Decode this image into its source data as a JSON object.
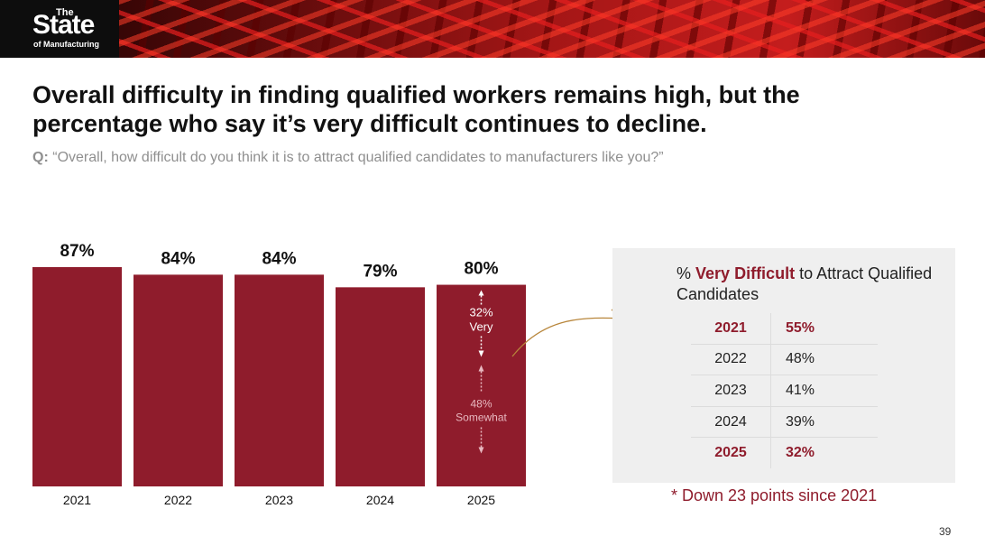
{
  "logo": {
    "the": "The",
    "main": "State",
    "sub": "of Manufacturing"
  },
  "title": "Overall difficulty in finding qualified workers remains high, but the percentage who say it’s very difficult continues to decline.",
  "question": {
    "prefix": "Q:",
    "text": "“Overall, how difficult do you think it is to attract qualified candidates to manufacturers like you?”"
  },
  "chart_data": {
    "type": "bar",
    "categories": [
      "2021",
      "2022",
      "2023",
      "2024",
      "2025"
    ],
    "values": [
      87,
      84,
      84,
      79,
      80
    ],
    "labels": [
      "87%",
      "84%",
      "84%",
      "79%",
      "80%"
    ],
    "ylim": [
      0,
      87
    ],
    "bar_color": "#8f1c2c",
    "breakdown_2025": [
      {
        "value": "32%",
        "label": "Very"
      },
      {
        "value": "48%",
        "label": "Somewhat"
      }
    ]
  },
  "panel": {
    "title_prefix": "%",
    "title_highlight": "Very Difficult",
    "title_rest": "to Attract Qualified Candidates",
    "rows": [
      {
        "year": "2021",
        "value": "55%",
        "highlight": true
      },
      {
        "year": "2022",
        "value": "48%",
        "highlight": false
      },
      {
        "year": "2023",
        "value": "41%",
        "highlight": false
      },
      {
        "year": "2024",
        "value": "39%",
        "highlight": false
      },
      {
        "year": "2025",
        "value": "32%",
        "highlight": true
      }
    ]
  },
  "footnote": "* Down 23 points since 2021",
  "page_number": "39",
  "colors": {
    "accent": "#8f1c2c",
    "arrow": "#b8863b",
    "panel_bg": "#efefef"
  }
}
